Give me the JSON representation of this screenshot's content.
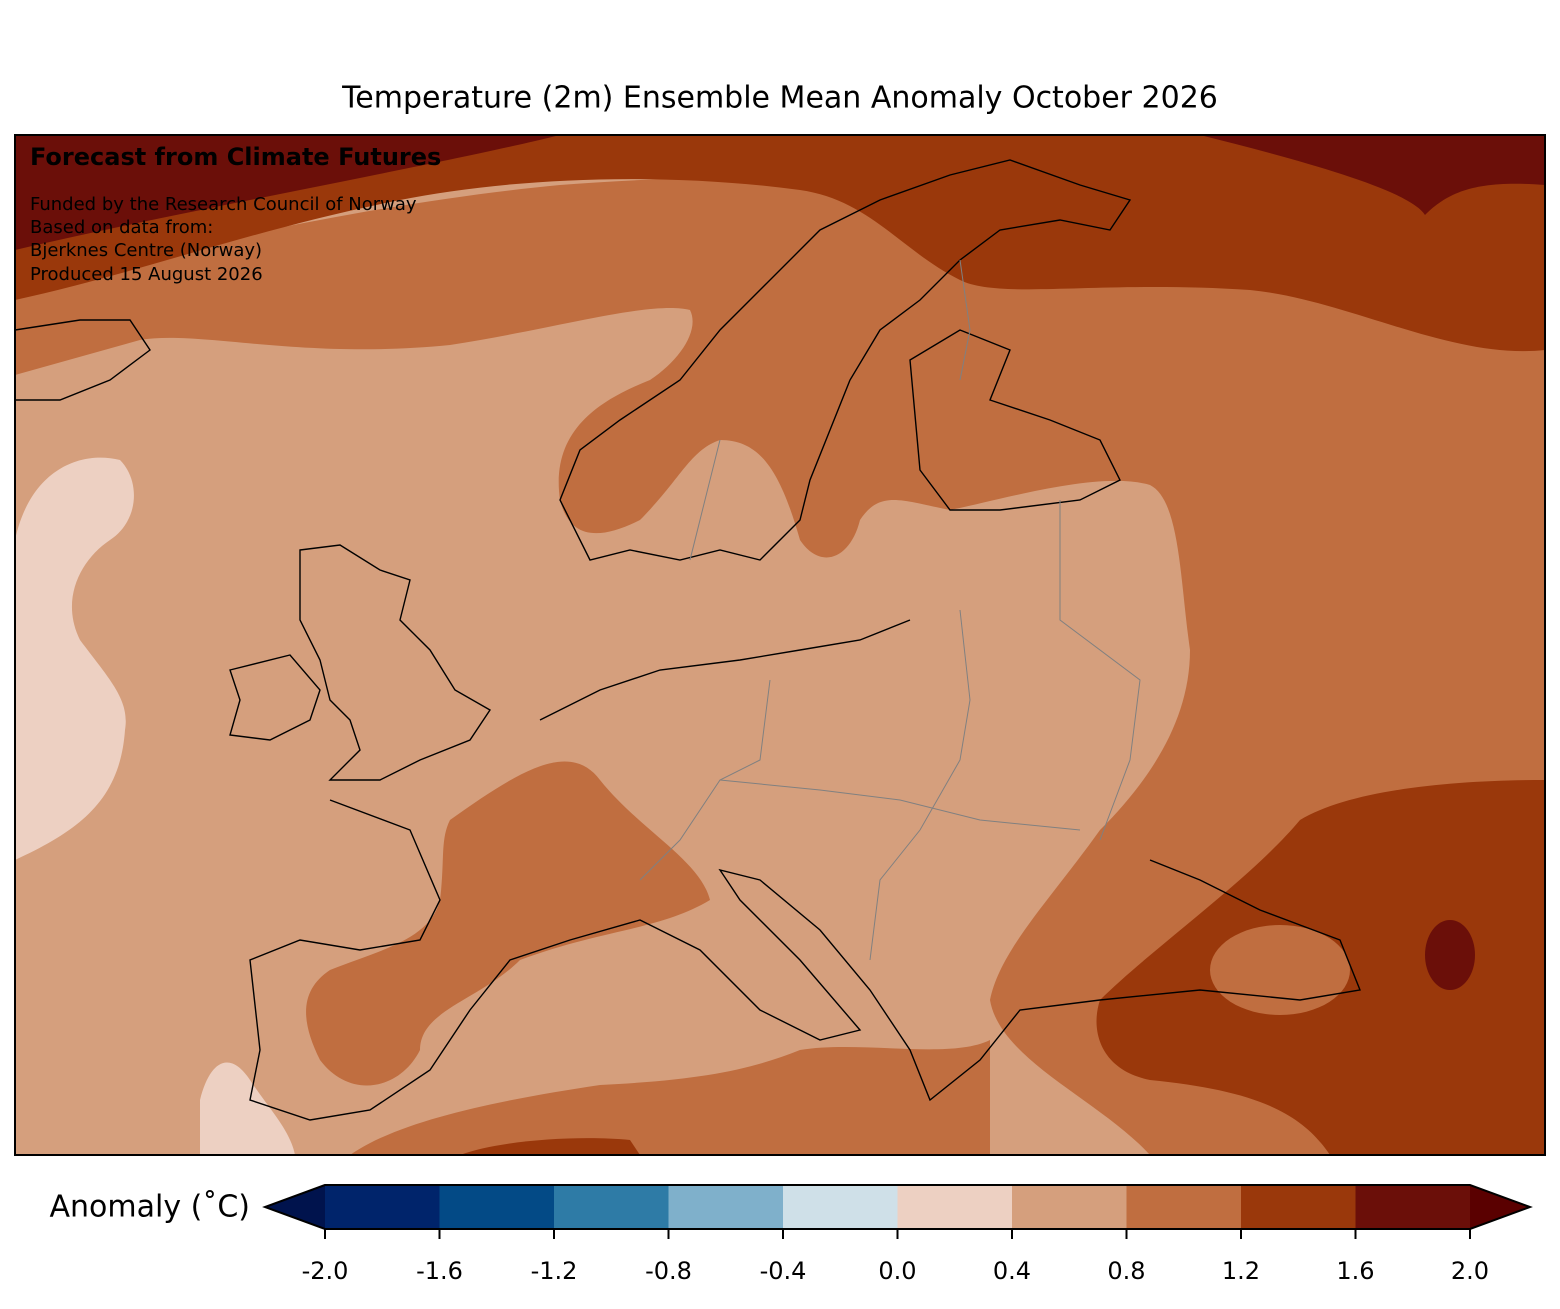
{
  "title": "Temperature (2m) Ensemble Mean Anomaly October 2026",
  "annotation": {
    "heading": "Forecast from Climate Futures",
    "lines": [
      "Funded by the Research Council of Norway",
      "Based on data from:",
      "Bjerknes Centre (Norway)",
      "Produced 15 August 2026"
    ]
  },
  "colorbar": {
    "label": "Anomaly (˚C)",
    "ticks": [
      {
        "value": -2,
        "label": "-2.0"
      },
      -1.6,
      -1.2,
      -0.8,
      -0.4,
      {
        "value": 0,
        "label": "0.0"
      },
      0.4,
      0.8,
      1.2,
      1.6,
      {
        "value": 2,
        "label": "2.0"
      }
    ],
    "colors": [
      "#00246b",
      "#034a86",
      "#2e7ba6",
      "#7fb0cb",
      "#cfe0e8",
      "#edd0c2",
      "#d59f7d",
      "#c06e40",
      "#9a380b",
      "#6b0f09"
    ],
    "under_color": "#00134d",
    "over_color": "#5a0000"
  }
}
